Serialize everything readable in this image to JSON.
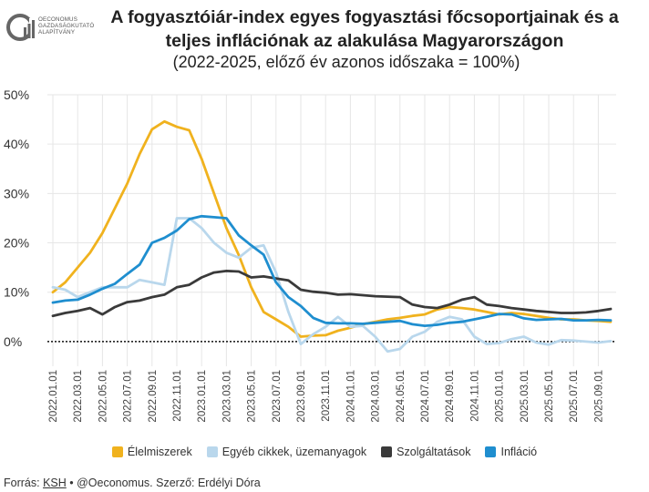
{
  "logo": {
    "lines": [
      "OECONOMUS",
      "GAZDASÁGKUTATÓ",
      "ALAPÍTVÁNY"
    ],
    "color": "#555555"
  },
  "header": {
    "title_line1": "A fogyasztóiár-index egyes fogyasztási főcsoportjainak és a",
    "title_line2": "teljes inflációnak az alakulása Magyarországon",
    "subtitle": "(2022-2025, előző év azonos időszaka = 100%)"
  },
  "footer": {
    "prefix": "Forrás: ",
    "source_link": "KSH",
    "rest": " • @Oeconomus. Szerző: Erdélyi Dóra"
  },
  "chart_data": {
    "type": "line",
    "title": "A fogyasztóiár-index egyes fogyasztási főcsoportjainak és a teljes inflációnak az alakulása Magyarországon",
    "subtitle": "(2022-2025, előző év azonos időszaka = 100%)",
    "xlabel": "",
    "ylabel": "",
    "ylim": [
      -0.05,
      0.5
    ],
    "yticks": [
      0,
      0.1,
      0.2,
      0.3,
      0.4,
      0.5
    ],
    "ytick_labels": [
      "0%",
      "10%",
      "20%",
      "30%",
      "40%",
      "50%"
    ],
    "xtick_labels": [
      "2022.01.01",
      "2022.03.01",
      "2022.05.01",
      "2022.07.01",
      "2022.09.01",
      "2022.11.01",
      "2023.01.01",
      "2023.03.01",
      "2023.05.01",
      "2023.07.01",
      "2023.09.01",
      "2023.11.01",
      "2024.01.01",
      "2024.03.01",
      "2024.05.01",
      "2024.07.01",
      "2024.09.01",
      "2024.11.01",
      "2025.01.01",
      "2025.03.01",
      "2025.05.01",
      "2025.07.01",
      "2025.09.01"
    ],
    "x_start": "2022-01",
    "n_points": 46,
    "grid": true,
    "zero_line": "dotted",
    "legend_position": "bottom",
    "series": [
      {
        "name": "Élelmiszerek",
        "color": "#f0b21e",
        "values": [
          0.1,
          0.12,
          0.15,
          0.18,
          0.22,
          0.27,
          0.32,
          0.38,
          0.43,
          0.446,
          0.435,
          0.428,
          0.37,
          0.3,
          0.23,
          0.175,
          0.11,
          0.06,
          0.045,
          0.03,
          0.01,
          0.012,
          0.013,
          0.022,
          0.028,
          0.035,
          0.04,
          0.045,
          0.048,
          0.052,
          0.055,
          0.065,
          0.07,
          0.068,
          0.065,
          0.06,
          0.055,
          0.058,
          0.056,
          0.052,
          0.048,
          0.045,
          0.045,
          0.043,
          0.042,
          0.04
        ]
      },
      {
        "name": "Egyéb cikkek, üzemanyagok",
        "color": "#b9d7ec",
        "values": [
          0.11,
          0.105,
          0.09,
          0.1,
          0.11,
          0.11,
          0.11,
          0.125,
          0.12,
          0.115,
          0.25,
          0.25,
          0.23,
          0.2,
          0.18,
          0.17,
          0.19,
          0.195,
          0.14,
          0.06,
          -0.005,
          0.015,
          0.03,
          0.05,
          0.03,
          0.032,
          0.01,
          -0.02,
          -0.015,
          0.01,
          0.02,
          0.04,
          0.05,
          0.045,
          0.01,
          -0.005,
          -0.003,
          0.005,
          0.01,
          -0.002,
          -0.006,
          0.003,
          0.002,
          0.0,
          -0.002,
          0.001
        ]
      },
      {
        "name": "Szolgáltatások",
        "color": "#3a3a3a",
        "values": [
          0.052,
          0.058,
          0.062,
          0.068,
          0.055,
          0.07,
          0.08,
          0.083,
          0.09,
          0.095,
          0.11,
          0.115,
          0.13,
          0.14,
          0.143,
          0.142,
          0.13,
          0.132,
          0.128,
          0.124,
          0.105,
          0.101,
          0.099,
          0.095,
          0.096,
          0.094,
          0.092,
          0.091,
          0.09,
          0.075,
          0.07,
          0.068,
          0.075,
          0.085,
          0.09,
          0.075,
          0.072,
          0.068,
          0.065,
          0.062,
          0.06,
          0.058,
          0.058,
          0.059,
          0.062,
          0.066
        ]
      },
      {
        "name": "Infláció",
        "color": "#1f8ecf",
        "values": [
          0.079,
          0.083,
          0.085,
          0.095,
          0.107,
          0.117,
          0.137,
          0.156,
          0.2,
          0.21,
          0.225,
          0.248,
          0.254,
          0.252,
          0.25,
          0.215,
          0.195,
          0.176,
          0.12,
          0.09,
          0.072,
          0.048,
          0.038,
          0.037,
          0.037,
          0.036,
          0.038,
          0.04,
          0.042,
          0.035,
          0.032,
          0.034,
          0.038,
          0.04,
          0.045,
          0.05,
          0.056,
          0.055,
          0.047,
          0.044,
          0.045,
          0.046,
          0.043,
          0.043,
          0.044,
          0.043
        ]
      }
    ]
  }
}
